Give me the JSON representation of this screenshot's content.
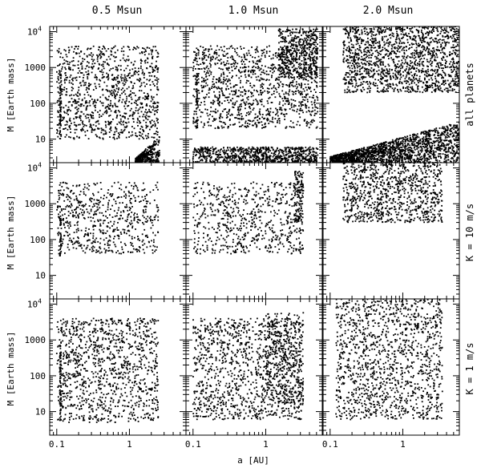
{
  "chart_data": {
    "type": "scatter",
    "columns": [
      "0.5 Msun",
      "1.0 Msun",
      "2.0 Msun"
    ],
    "rows": [
      "all planets",
      "K = 10 m/s",
      "K = 1 m/s"
    ],
    "xlabel": "a [AU]",
    "ylabel": "M [Earth mass]",
    "x_scale": "log",
    "y_scale": "log",
    "xlim": [
      0.08,
      6
    ],
    "ylim": [
      2.2,
      14000
    ],
    "x_ticks": [
      {
        "value": 0.1,
        "label": "0.1"
      },
      {
        "value": 1,
        "label": "1"
      }
    ],
    "y_ticks": [
      {
        "value": 10,
        "label": "10"
      },
      {
        "value": 100,
        "label": "100"
      },
      {
        "value": 1000,
        "label": "1000"
      },
      {
        "value": 10000,
        "label": "10",
        "exponent": "4"
      }
    ],
    "grid": false,
    "legend": "none",
    "marker_color": "#000000",
    "panels": [
      {
        "row": 0,
        "col": 0,
        "a_max": 2.5,
        "inner_stack_a": 0.11,
        "regions": [
          {
            "a": [
              0.1,
              2.5
            ],
            "m": [
              10,
              4000
            ],
            "count": 1100
          },
          {
            "a": [
              0.11,
              0.115
            ],
            "m": [
              10,
              800
            ],
            "count": 60
          },
          {
            "a": [
              1.2,
              2.6
            ],
            "m": [
              2.2,
              12
            ],
            "count": 320,
            "trend": "rising"
          }
        ]
      },
      {
        "row": 0,
        "col": 1,
        "a_max": 5.2,
        "inner_stack_a": 0.11,
        "regions": [
          {
            "a": [
              0.1,
              5.2
            ],
            "m": [
              20,
              4000
            ],
            "count": 1200
          },
          {
            "a": [
              1.5,
              5.2
            ],
            "m": [
              500,
              12000
            ],
            "count": 500
          },
          {
            "a": [
              0.1,
              5.2
            ],
            "m": [
              2.2,
              6
            ],
            "count": 800
          },
          {
            "a": [
              0.11,
              0.115
            ],
            "m": [
              20,
              600
            ],
            "count": 40
          }
        ]
      },
      {
        "row": 0,
        "col": 2,
        "a_max": 6,
        "inner_stack_a": null,
        "regions": [
          {
            "a": [
              0.15,
              6
            ],
            "m": [
              200,
              14000
            ],
            "count": 1500
          },
          {
            "a": [
              0.1,
              6
            ],
            "m": [
              2.2,
              30
            ],
            "count": 1600,
            "trend": "rising"
          }
        ]
      },
      {
        "row": 1,
        "col": 0,
        "a_max": 2.5,
        "inner_stack_a": 0.11,
        "regions": [
          {
            "a": [
              0.1,
              2.5
            ],
            "m": [
              40,
              4000
            ],
            "count": 650
          },
          {
            "a": [
              0.11,
              0.115
            ],
            "m": [
              30,
              400
            ],
            "count": 40
          }
        ]
      },
      {
        "row": 1,
        "col": 1,
        "a_max": 3.3,
        "inner_stack_a": 0.11,
        "regions": [
          {
            "a": [
              0.1,
              3.3
            ],
            "m": [
              40,
              4000
            ],
            "count": 650
          },
          {
            "a": [
              2.5,
              3.3
            ],
            "m": [
              300,
              8000
            ],
            "count": 120
          }
        ]
      },
      {
        "row": 1,
        "col": 2,
        "a_max": 3.5,
        "inner_stack_a": null,
        "regions": [
          {
            "a": [
              0.15,
              3.5
            ],
            "m": [
              300,
              14000
            ],
            "count": 900
          }
        ]
      },
      {
        "row": 2,
        "col": 0,
        "a_max": 2.5,
        "inner_stack_a": 0.11,
        "regions": [
          {
            "a": [
              0.1,
              2.5
            ],
            "m": [
              5,
              4000
            ],
            "count": 1100
          },
          {
            "a": [
              0.11,
              0.115
            ],
            "m": [
              5,
              900
            ],
            "count": 60
          }
        ]
      },
      {
        "row": 2,
        "col": 1,
        "a_max": 3.3,
        "inner_stack_a": 0.11,
        "regions": [
          {
            "a": [
              0.1,
              3.3
            ],
            "m": [
              6,
              4000
            ],
            "count": 1200
          },
          {
            "a": [
              1,
              3.3
            ],
            "m": [
              15,
              6000
            ],
            "count": 300
          }
        ]
      },
      {
        "row": 2,
        "col": 2,
        "a_max": 3.5,
        "inner_stack_a": null,
        "regions": [
          {
            "a": [
              0.12,
              3.5
            ],
            "m": [
              6,
              14000
            ],
            "count": 1300
          }
        ]
      }
    ]
  }
}
